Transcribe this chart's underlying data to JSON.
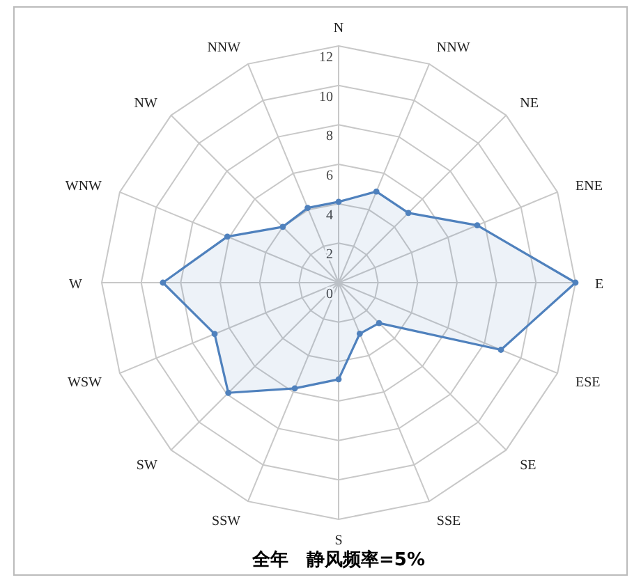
{
  "chart_data": {
    "type": "radar",
    "title": "全年　静风频率=5%",
    "categories": [
      "N",
      "NNW",
      "NE",
      "ENE",
      "E",
      "ESE",
      "SE",
      "SSE",
      "S",
      "SSW",
      "SW",
      "WSW",
      "W",
      "WNW",
      "NW",
      "NNW"
    ],
    "series": [
      {
        "color": "#4f81bd",
        "values": [
          4.1,
          5,
          5,
          7.6,
          12,
          8.9,
          2.9,
          2.8,
          4.9,
          5.8,
          7.9,
          6.8,
          8.9,
          6.1,
          4,
          4.1
        ]
      }
    ],
    "ylim": [
      0,
      12
    ],
    "yticks": [
      0,
      2,
      4,
      6,
      8,
      10,
      12
    ],
    "grid": true,
    "marker": "circle"
  }
}
